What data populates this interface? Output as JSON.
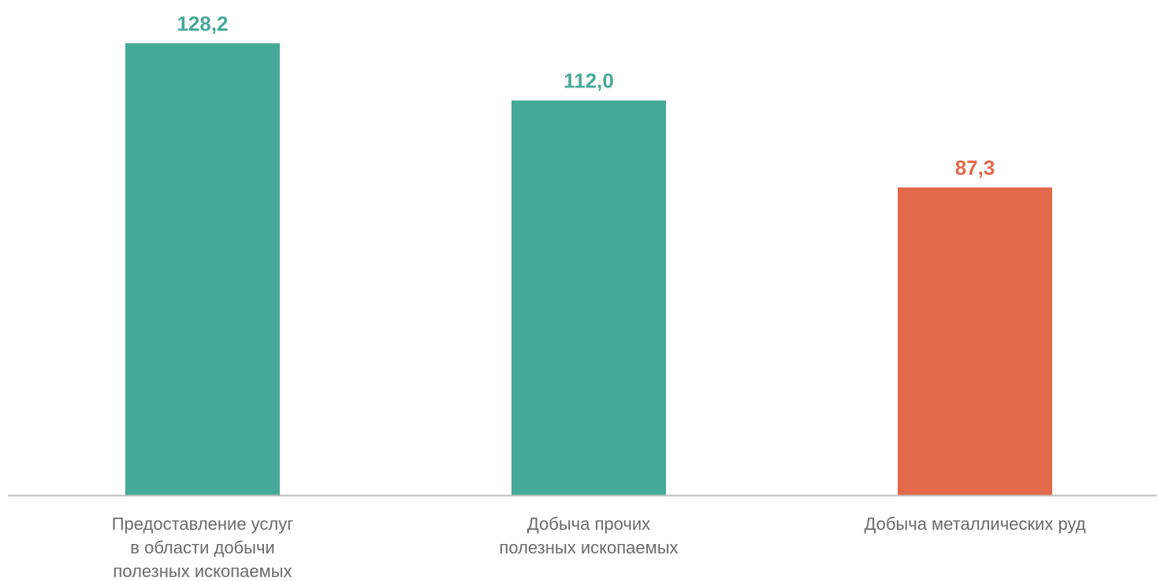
{
  "chart_data": {
    "type": "bar",
    "categories": [
      [
        "Предоставление услуг",
        "в области добычи",
        "полезных ископаемых"
      ],
      [
        "Добыча прочих",
        "полезных ископаемых"
      ],
      [
        "Добыча металлических руд"
      ]
    ],
    "values": [
      128.2,
      112.0,
      87.3
    ],
    "value_labels": [
      "128,2",
      "112,0",
      "87,3"
    ],
    "bar_colors": [
      "#45a998",
      "#45a998",
      "#e2694a"
    ],
    "title": "",
    "xlabel": "",
    "ylabel": "",
    "ylim": [
      0,
      128.2
    ],
    "grid": false,
    "legend": "none"
  },
  "colors": {
    "positive": "#45a998",
    "negative": "#e2694a",
    "axis": "#bfbfbf",
    "category_text": "#6b6b6b"
  }
}
